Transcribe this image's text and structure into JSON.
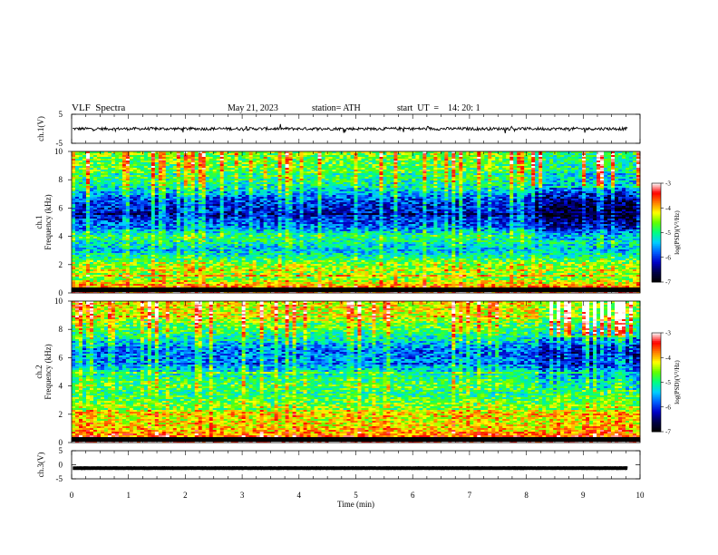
{
  "header": {
    "title": "VLF  Spectra",
    "date": "May 21, 2023",
    "station": "station= ATH",
    "start": "start  UT  =    14: 20: 1"
  },
  "colors": {
    "waveform": "#000000",
    "colormap": [
      "#000000",
      "#00004a",
      "#0000c8",
      "#0060ff",
      "#00d0ff",
      "#00ff80",
      "#60ff00",
      "#ffff00",
      "#ff8000",
      "#ff0000",
      "#ffffff"
    ]
  },
  "chart_data": [
    {
      "type": "line",
      "id": "ch1-waveform",
      "ylabel": "ch.1(V)",
      "ylim": [
        -5,
        5
      ],
      "yticks": [
        "5",
        "-5"
      ],
      "xlim": [
        0,
        10
      ],
      "trace_level": 0,
      "trace_noise_amplitude": 0.5,
      "grid": false
    },
    {
      "type": "heatmap",
      "id": "ch1-spectrogram",
      "ylabel": "ch.1\nFrequency  (kHz)",
      "ylim": [
        0,
        10
      ],
      "yticks": [
        "0",
        "2",
        "4",
        "6",
        "8",
        "10"
      ],
      "xlim": [
        0,
        10
      ],
      "colorbar": {
        "label": "log(PSD)(V²/Hz)",
        "range": [
          -7,
          -3
        ],
        "ticks": [
          "-3",
          "-4",
          "-5",
          "-6",
          "-7"
        ]
      },
      "profile_kHz_logPSD": [
        [
          0,
          -3.5
        ],
        [
          0.4,
          -3.8
        ],
        [
          1,
          -4.6
        ],
        [
          2,
          -4.5
        ],
        [
          2.4,
          -4.9
        ],
        [
          3,
          -5.5
        ],
        [
          4,
          -4.9
        ],
        [
          4.5,
          -5.6
        ],
        [
          5.5,
          -6.2
        ],
        [
          6.5,
          -6.0
        ],
        [
          7.5,
          -5.2
        ],
        [
          8.5,
          -4.8
        ],
        [
          10,
          -4.6
        ]
      ],
      "late_change_min": 8.1
    },
    {
      "type": "heatmap",
      "id": "ch2-spectrogram",
      "ylabel": "ch.2\nFrequency  (kHz)",
      "ylim": [
        0,
        10
      ],
      "yticks": [
        "0",
        "2",
        "4",
        "6",
        "8",
        "10"
      ],
      "xlim": [
        0,
        10
      ],
      "colorbar": {
        "label": "log(PSD)(V²/Hz)",
        "range": [
          -7,
          -3
        ],
        "ticks": [
          "-3",
          "-4",
          "-5",
          "-6",
          "-7"
        ]
      },
      "profile_kHz_logPSD": [
        [
          0,
          -3.3
        ],
        [
          0.8,
          -4.0
        ],
        [
          1.6,
          -4.3
        ],
        [
          2,
          -4.1
        ],
        [
          2.6,
          -4.6
        ],
        [
          3.5,
          -5.0
        ],
        [
          4,
          -4.7
        ],
        [
          4.6,
          -5.0
        ],
        [
          5.5,
          -5.6
        ],
        [
          6.5,
          -5.8
        ],
        [
          7.5,
          -5.1
        ],
        [
          8.5,
          -4.5
        ],
        [
          10,
          -4.1
        ]
      ],
      "late_change_min": 8.2
    },
    {
      "type": "line",
      "id": "ch3-waveform",
      "ylabel": "ch.3(V)",
      "ylim": [
        -5,
        5
      ],
      "yticks": [
        "5",
        "0",
        "-5"
      ],
      "xlim": [
        0,
        10
      ],
      "xlabel": "Time  (min)",
      "xticks": [
        "0",
        "1",
        "2",
        "3",
        "4",
        "5",
        "6",
        "7",
        "8",
        "9",
        "10"
      ],
      "trace_level": -1.2,
      "trace_noise_amplitude": 0.05,
      "grid": false
    }
  ]
}
